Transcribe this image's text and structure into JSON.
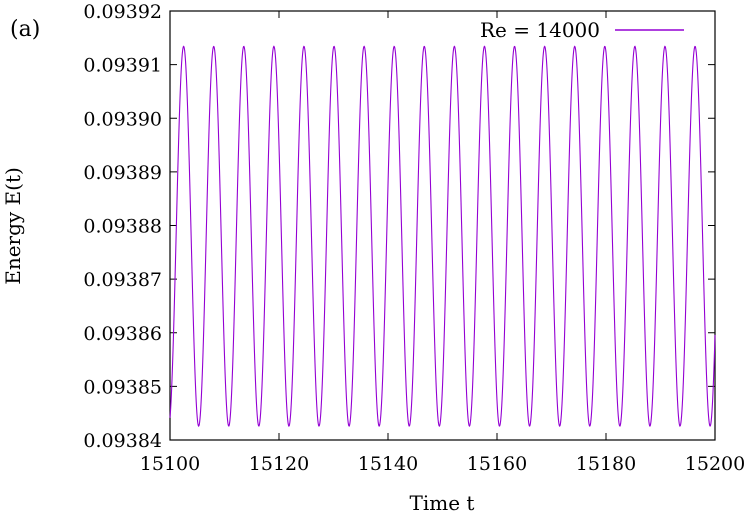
{
  "panel_label": "(a)",
  "chart_data": {
    "type": "line",
    "xlabel": "Time t",
    "ylabel": "Energy E(t)",
    "xlim": [
      15100,
      15200
    ],
    "ylim": [
      0.09384,
      0.09392
    ],
    "x_ticks": [
      15100,
      15120,
      15140,
      15160,
      15180,
      15200
    ],
    "x_tick_labels": [
      "15100",
      "15120",
      "15140",
      "15160",
      "15180",
      "15200"
    ],
    "y_ticks": [
      0.09384,
      0.09385,
      0.09386,
      0.09387,
      0.09388,
      0.09389,
      0.0939,
      0.09391,
      0.09392
    ],
    "y_tick_labels": [
      "0.09384",
      "0.09385",
      "0.09386",
      "0.09387",
      "0.09388",
      "0.09389",
      "0.09390",
      "0.09391",
      "0.09392"
    ],
    "grid": false,
    "legend_position": "top-right",
    "series": [
      {
        "name": "Re = 14000",
        "color": "#9400d3",
        "signal": {
          "form": "sinusoid",
          "mean": 0.093878,
          "amplitude": 3.54e-05,
          "period": 5.52,
          "first_peak_t": 15102.5
        }
      }
    ]
  }
}
